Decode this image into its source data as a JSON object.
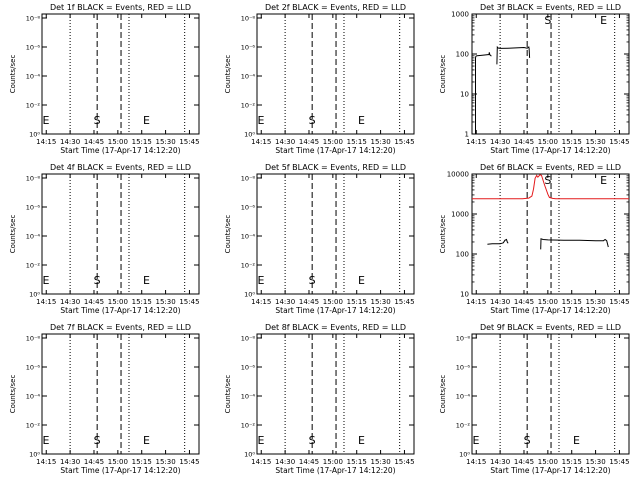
{
  "xlabel": "Start Time (17-Apr-17 14:12:20)",
  "ylabel": "Counts/sec",
  "x_ticks": [
    "14:15",
    "14:30",
    "14:45",
    "15:00",
    "15:15",
    "15:30",
    "15:45"
  ],
  "x_tick_minutes": [
    15,
    30,
    45,
    60,
    75,
    90,
    105
  ],
  "xlim_minutes_after_14_00": [
    12.33,
    111
  ],
  "dotted_lines_minutes": [
    30,
    67,
    102
  ],
  "dashed_lines_minutes": [
    47,
    62
  ],
  "colors": {
    "events": "#000000",
    "lld": "#e41a1c",
    "axes": "#000000"
  },
  "panels": [
    {
      "title": "Det 1f BLACK = Events, RED = LLD",
      "scale": "empty",
      "yticks": [
        "10⁰",
        "10⁻²",
        "10⁻⁴",
        "10⁻⁶",
        "10⁻⁸"
      ],
      "ylabels_placement": "inside-left",
      "S_at": 47,
      "E_at": 78
    },
    {
      "title": "Det 2f BLACK = Events, RED = LLD",
      "scale": "empty",
      "yticks": [
        "10⁰",
        "10⁻²",
        "10⁻⁴",
        "10⁻⁶",
        "10⁻⁸"
      ],
      "ylabels_placement": "inside-left",
      "S_at": 47,
      "E_at": 78
    },
    {
      "title": "Det 3f BLACK = Events, RED = LLD",
      "scale": "log",
      "ylim": [
        1,
        1000
      ],
      "yticks": [
        "1",
        "10",
        "100",
        "1000"
      ],
      "S_at": 60,
      "E_at": 95,
      "series": [
        {
          "name": "Events",
          "color": "events",
          "x": [
            12.33,
            14.5,
            14.5,
            14.8,
            15.5,
            18,
            21,
            23,
            23.2,
            23.5,
            24,
            24.3,
            24.5
          ],
          "y": [
            1,
            1,
            80,
            88,
            90,
            92,
            95,
            97,
            110,
            96,
            92,
            90,
            88
          ]
        },
        {
          "name": "Events",
          "color": "events",
          "x": [
            28,
            28.2,
            29,
            30,
            35,
            40,
            45,
            47,
            48,
            48.2,
            48.5
          ],
          "y": [
            55,
            150,
            140,
            138,
            140,
            142,
            145,
            140,
            150,
            138,
            80
          ]
        }
      ]
    },
    {
      "title": "Det 4f BLACK = Events, RED = LLD",
      "scale": "empty",
      "yticks": [
        "10⁰",
        "10⁻²",
        "10⁻⁴",
        "10⁻⁶",
        "10⁻⁸"
      ],
      "ylabels_placement": "inside-left",
      "S_at": 47,
      "E_at": 78
    },
    {
      "title": "Det 5f BLACK = Events, RED = LLD",
      "scale": "empty",
      "yticks": [
        "10⁰",
        "10⁻²",
        "10⁻⁴",
        "10⁻⁶",
        "10⁻⁸"
      ],
      "ylabels_placement": "inside-left",
      "S_at": 47,
      "E_at": 78
    },
    {
      "title": "Det 6f BLACK = Events, RED = LLD",
      "scale": "log",
      "ylim": [
        10,
        10000
      ],
      "yticks": [
        "10",
        "100",
        "1000",
        "10000"
      ],
      "S_at": 60,
      "E_at": 95,
      "series": [
        {
          "name": "LLD",
          "color": "lld",
          "x": [
            12.33,
            30,
            44,
            48,
            50,
            51,
            52,
            53,
            53.5,
            54,
            55,
            56,
            58,
            60,
            61,
            63,
            65,
            70,
            90,
            111
          ],
          "y": [
            2400,
            2400,
            2400,
            2500,
            2800,
            4200,
            7800,
            9200,
            8400,
            8500,
            9600,
            9200,
            5200,
            3100,
            2600,
            2450,
            2400,
            2400,
            2400,
            2400
          ]
        },
        {
          "name": "Events",
          "color": "events",
          "x": [
            22,
            25,
            30,
            31,
            32,
            33,
            34,
            34.5,
            35
          ],
          "y": [
            175,
            180,
            180,
            185,
            190,
            220,
            230,
            200,
            185
          ]
        },
        {
          "name": "Events",
          "color": "events",
          "x": [
            55.5,
            55.7,
            57,
            60,
            70,
            80,
            90,
            95,
            96,
            97,
            98
          ],
          "y": [
            130,
            240,
            230,
            225,
            220,
            220,
            215,
            215,
            230,
            215,
            150
          ]
        }
      ]
    },
    {
      "title": "Det 7f BLACK = Events, RED = LLD",
      "scale": "empty",
      "yticks": [
        "10⁰",
        "10⁻²",
        "10⁻⁴",
        "10⁻⁶",
        "10⁻⁸"
      ],
      "ylabels_placement": "inside-left",
      "S_at": 47,
      "E_at": 78
    },
    {
      "title": "Det 8f BLACK = Events, RED = LLD",
      "scale": "empty",
      "yticks": [
        "10⁰",
        "10⁻²",
        "10⁻⁴",
        "10⁻⁶",
        "10⁻⁸"
      ],
      "ylabels_placement": "inside-left",
      "S_at": 47,
      "E_at": 78
    },
    {
      "title": "Det 9f BLACK = Events, RED = LLD",
      "scale": "empty",
      "yticks": [
        "10⁰",
        "10⁻²",
        "10⁻⁴",
        "10⁻⁶",
        "10⁻⁸"
      ],
      "ylabels_placement": "inside-left",
      "S_at": 47,
      "E_at": 78
    }
  ],
  "markers": {
    "start": "S",
    "end": "E"
  },
  "chart_data": [
    {
      "type": "line",
      "title": "Det 1f BLACK = Events, RED = LLD",
      "xlabel": "Start Time (17-Apr-17 14:12:20)",
      "ylabel": "Counts/sec",
      "series": []
    },
    {
      "type": "line",
      "title": "Det 2f BLACK = Events, RED = LLD",
      "xlabel": "Start Time (17-Apr-17 14:12:20)",
      "ylabel": "Counts/sec",
      "series": []
    },
    {
      "type": "line",
      "title": "Det 3f BLACK = Events, RED = LLD",
      "xlabel": "Start Time (17-Apr-17 14:12:20)",
      "ylabel": "Counts/sec",
      "y_scale": "log",
      "ylim": [
        1,
        1000
      ],
      "series": [
        {
          "name": "Events",
          "note": "approx 80-150 counts/sec, two segments with gap around 14:37-14:40 and after 15:00"
        }
      ]
    },
    {
      "type": "line",
      "title": "Det 4f BLACK = Events, RED = LLD",
      "xlabel": "Start Time (17-Apr-17 14:12:20)",
      "ylabel": "Counts/sec",
      "series": []
    },
    {
      "type": "line",
      "title": "Det 5f BLACK = Events, RED = LLD",
      "xlabel": "Start Time (17-Apr-17 14:12:20)",
      "ylabel": "Counts/sec",
      "series": []
    },
    {
      "type": "line",
      "title": "Det 6f BLACK = Events, RED = LLD",
      "xlabel": "Start Time (17-Apr-17 14:12:20)",
      "ylabel": "Counts/sec",
      "y_scale": "log",
      "ylim": [
        10,
        10000
      ],
      "series": [
        {
          "name": "LLD",
          "note": "approx 2400 with peak ~9600 near 14:52-14:55"
        },
        {
          "name": "Events",
          "note": "approx 180-240"
        }
      ]
    },
    {
      "type": "line",
      "title": "Det 7f BLACK = Events, RED = LLD",
      "xlabel": "Start Time (17-Apr-17 14:12:20)",
      "ylabel": "Counts/sec",
      "series": []
    },
    {
      "type": "line",
      "title": "Det 8f BLACK = Events, RED = LLD",
      "xlabel": "Start Time (17-Apr-17 14:12:20)",
      "ylabel": "Counts/sec",
      "series": []
    },
    {
      "type": "line",
      "title": "Det 9f BLACK = Events, RED = LLD",
      "xlabel": "Start Time (17-Apr-17 14:12:20)",
      "ylabel": "Counts/sec",
      "series": []
    }
  ]
}
